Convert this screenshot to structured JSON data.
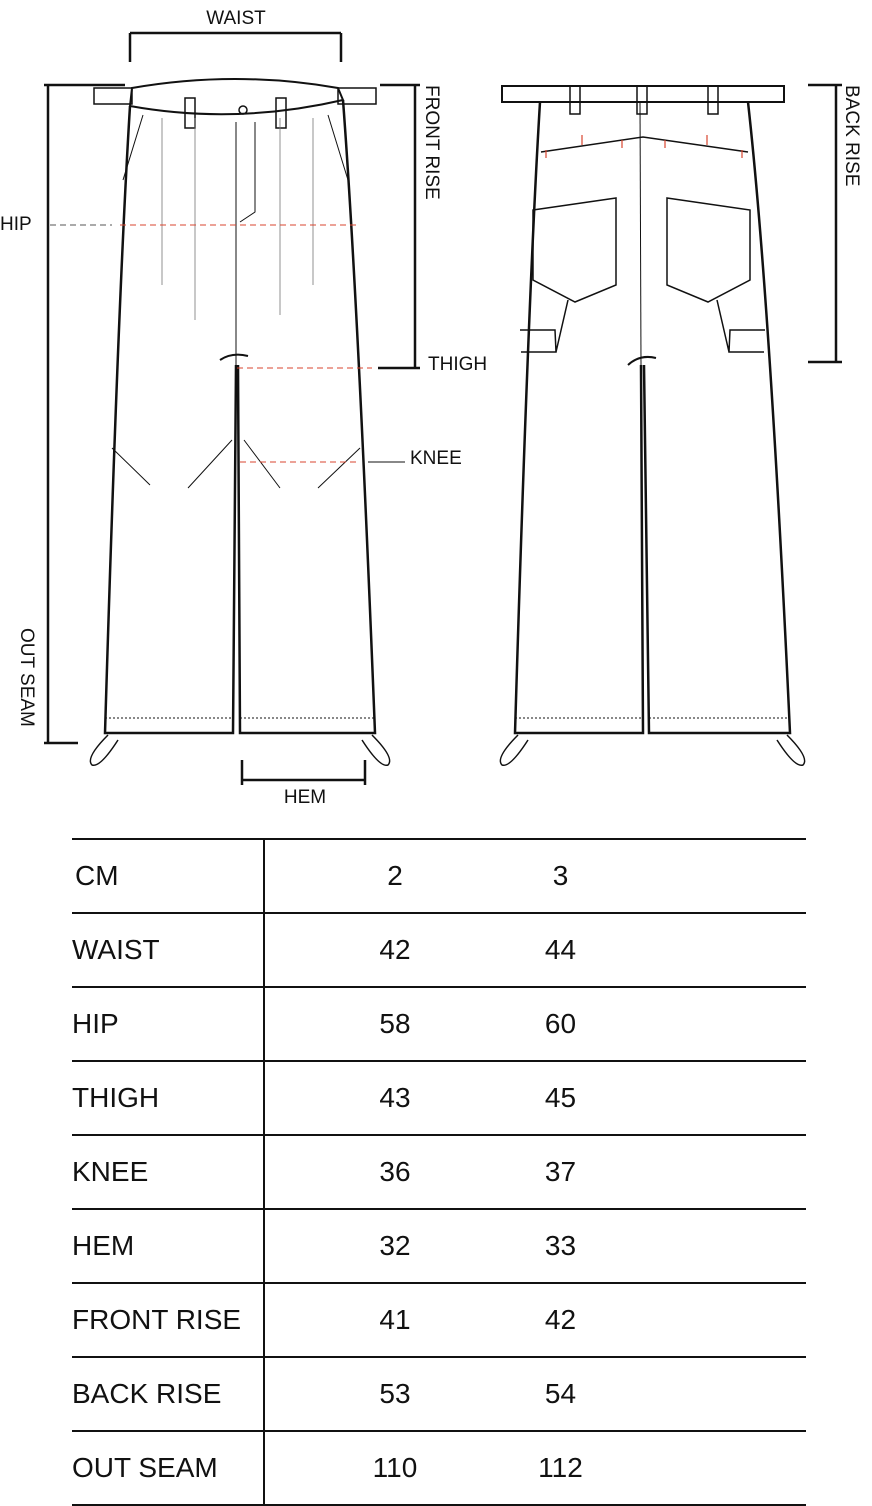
{
  "diagram": {
    "labels": {
      "waist": "WAIST",
      "hip": "HIP",
      "front_rise": "FRONT RISE",
      "thigh": "THIGH",
      "knee": "KNEE",
      "out_seam": "OUT SEAM",
      "hem": "HEM",
      "back_rise": "BACK RISE"
    },
    "colors": {
      "line": "#111111",
      "measure_dash": "#d9452f"
    }
  },
  "table": {
    "header": {
      "label": "CM",
      "sizes": [
        "2",
        "3"
      ]
    },
    "rows": [
      {
        "label": "WAIST",
        "values": [
          "42",
          "44"
        ]
      },
      {
        "label": "HIP",
        "values": [
          "58",
          "60"
        ]
      },
      {
        "label": "THIGH",
        "values": [
          "43",
          "45"
        ]
      },
      {
        "label": "KNEE",
        "values": [
          "36",
          "37"
        ]
      },
      {
        "label": "HEM",
        "values": [
          "32",
          "33"
        ]
      },
      {
        "label": "FRONT RISE",
        "values": [
          "41",
          "42"
        ]
      },
      {
        "label": "BACK RISE",
        "values": [
          "53",
          "54"
        ]
      },
      {
        "label": "OUT SEAM",
        "values": [
          "110",
          "112"
        ]
      }
    ]
  }
}
